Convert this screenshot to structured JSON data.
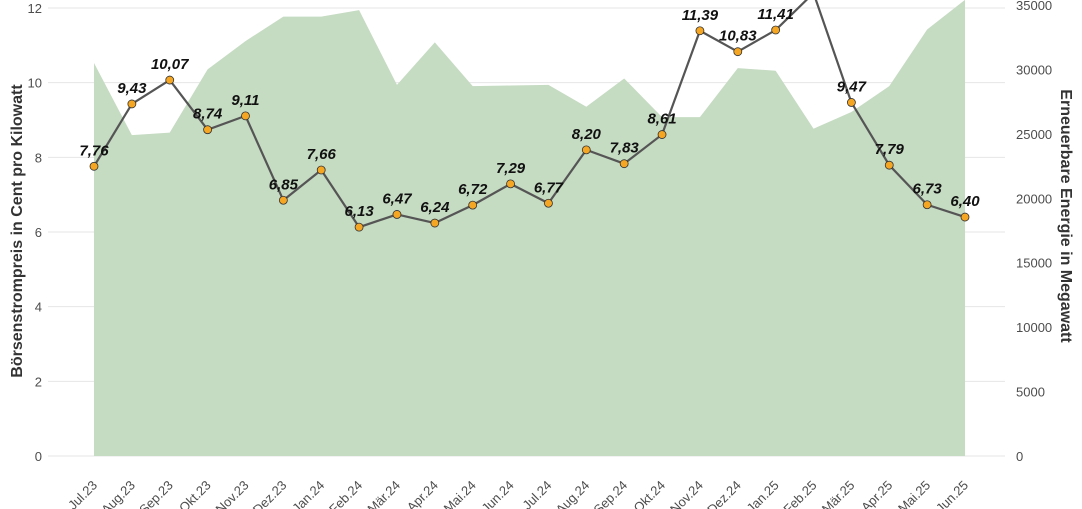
{
  "chart_data": {
    "type": "line",
    "xlabel": "",
    "ylabel": "Börsenstrompreis in Cent pro Kilowatt",
    "y2label": "Erneuerbare Energie in Megawatt",
    "ylim": [
      0,
      12
    ],
    "y2lim": [
      0,
      35000
    ],
    "yticks": [
      0,
      2,
      4,
      6,
      8,
      10,
      12
    ],
    "y2ticks": [
      0,
      5000,
      10000,
      15000,
      20000,
      25000,
      30000,
      35000
    ],
    "grid": true,
    "categories": [
      "Jul.23",
      "Aug.23",
      "Sep.23",
      "Okt.23",
      "Nov.23",
      "Dez.23",
      "Jan.24",
      "Feb.24",
      "Mär.24",
      "Apr.24",
      "Mai.24",
      "Jun.24",
      "Jul.24",
      "Aug.24",
      "Sep.24",
      "Okt.24",
      "Nov.24",
      "Dez.24",
      "Jan.25",
      "Feb.25",
      "Mär.25",
      "Apr.25",
      "Mai.25",
      "Jun.25"
    ],
    "tick_labels": [
      "Jul.23",
      "Aug.23",
      "Sep.23",
      "Okt.23",
      "Nov.23",
      "Dez.23",
      "Jan.24",
      "Feb.24",
      "Mär.24",
      "Apr.24",
      "Mai.24",
      "Jun.24",
      "Jul.24",
      "Aug.24",
      "Sep.24",
      "Okt.24",
      "Nov.24",
      "Dez.24",
      "Jan.25",
      "Feb.25",
      "Mär.25",
      "Apr.25",
      "Mai.25",
      "Jun.25"
    ],
    "series": [
      {
        "axis": "left",
        "kind": "line",
        "color": "#555555",
        "marker_color": "#f5a623",
        "values": [
          7.76,
          9.43,
          10.07,
          8.74,
          9.11,
          6.85,
          7.66,
          6.13,
          6.47,
          6.24,
          6.72,
          7.29,
          6.77,
          8.2,
          7.83,
          8.61,
          11.39,
          10.83,
          11.41,
          12.4,
          9.47,
          7.79,
          6.73,
          6.4
        ],
        "labels": [
          "7,76",
          "9,43",
          "10,07",
          "8,74",
          "9,11",
          "6,85",
          "7,66",
          "6,13",
          "6,47",
          "6,24",
          "6,72",
          "7,29",
          "6,77",
          "8,20",
          "7,83",
          "8,61",
          "11,39",
          "10,83",
          "11,41",
          "",
          "9,47",
          "7,79",
          "6,73",
          "6,40"
        ]
      },
      {
        "axis": "right",
        "kind": "area",
        "color": "#c5dbc2",
        "values": [
          30500,
          24900,
          25100,
          30000,
          32200,
          34100,
          34100,
          34600,
          28800,
          32100,
          28700,
          28750,
          28800,
          27100,
          29300,
          26300,
          26300,
          30100,
          29900,
          25400,
          26700,
          28700,
          33100,
          35400
        ]
      }
    ]
  }
}
